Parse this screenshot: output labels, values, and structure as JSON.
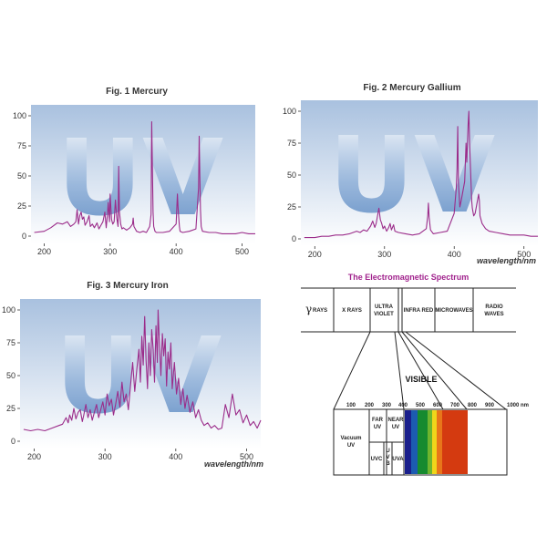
{
  "palette": {
    "spectrum_line": "#9b2c8a",
    "plot_top": "#a9c1df",
    "plot_bottom": "#ffffff",
    "uv_watermark": "#5f8fc8",
    "em_title": "#a0218c"
  },
  "watermark_text": "UV",
  "chart_data": [
    {
      "type": "line",
      "title": "Fig. 1 Mercury",
      "xlabel": "",
      "ylabel": "",
      "xlim": [
        180,
        520
      ],
      "ylim": [
        0,
        100
      ],
      "x_ticks": [
        "200",
        "300",
        "400",
        "500"
      ],
      "y_ticks": [
        "0",
        "25",
        "50",
        "75",
        "100"
      ],
      "grid": false,
      "series": [
        {
          "x": [
            185,
            200,
            210,
            220,
            228,
            235,
            240,
            245,
            248,
            250,
            252,
            254,
            256,
            258,
            260,
            262,
            265,
            268,
            270,
            273,
            276,
            280,
            283,
            286,
            289,
            292,
            294,
            296,
            297,
            299,
            300,
            302,
            304,
            306,
            308,
            310,
            312,
            313,
            314,
            316,
            318,
            320,
            325,
            330,
            334,
            335,
            336,
            340,
            345,
            350,
            355,
            360,
            362,
            363,
            365,
            366,
            368,
            370,
            380,
            390,
            400,
            402,
            403,
            404,
            405,
            406,
            410,
            420,
            430,
            434,
            435,
            436,
            437,
            438,
            440,
            450,
            460,
            470,
            480,
            490,
            500,
            510,
            520
          ],
          "y": [
            3,
            4,
            7,
            11,
            10,
            12,
            8,
            10,
            12,
            22,
            10,
            17,
            20,
            14,
            16,
            9,
            12,
            17,
            8,
            10,
            7,
            11,
            6,
            9,
            12,
            20,
            7,
            18,
            28,
            12,
            35,
            14,
            10,
            12,
            30,
            15,
            8,
            58,
            20,
            10,
            6,
            7,
            5,
            7,
            10,
            15,
            8,
            4,
            3,
            4,
            3,
            8,
            18,
            95,
            20,
            8,
            4,
            3,
            3,
            4,
            10,
            35,
            24,
            15,
            8,
            4,
            3,
            4,
            6,
            40,
            83,
            50,
            22,
            8,
            4,
            3,
            3,
            2,
            2,
            2,
            3,
            2,
            2
          ]
        }
      ]
    },
    {
      "type": "line",
      "title": "Fig. 2 Mercury Gallium",
      "xlabel": "wavelength/nm",
      "ylabel": "",
      "xlim": [
        180,
        520
      ],
      "ylim": [
        0,
        100
      ],
      "x_ticks": [
        "200",
        "300",
        "400",
        "500"
      ],
      "y_ticks": [
        "0",
        "25",
        "50",
        "75",
        "100"
      ],
      "grid": false,
      "series": [
        {
          "x": [
            185,
            200,
            210,
            220,
            230,
            240,
            250,
            255,
            260,
            265,
            270,
            275,
            280,
            283,
            286,
            288,
            290,
            292,
            294,
            296,
            298,
            300,
            303,
            306,
            308,
            310,
            313,
            315,
            320,
            330,
            340,
            350,
            360,
            362,
            363,
            364,
            366,
            370,
            380,
            390,
            400,
            403,
            404,
            405,
            406,
            408,
            410,
            415,
            417,
            418,
            420,
            421,
            422,
            424,
            425,
            426,
            428,
            430,
            435,
            436,
            437,
            440,
            445,
            450,
            460,
            470,
            480,
            490,
            500,
            510,
            520
          ],
          "y": [
            1,
            1,
            2,
            2,
            3,
            3,
            4,
            5,
            6,
            5,
            7,
            6,
            10,
            14,
            9,
            12,
            18,
            24,
            15,
            12,
            8,
            10,
            6,
            9,
            12,
            7,
            11,
            6,
            5,
            4,
            3,
            4,
            8,
            18,
            28,
            17,
            7,
            4,
            5,
            6,
            20,
            40,
            55,
            88,
            45,
            25,
            30,
            45,
            75,
            60,
            90,
            100,
            75,
            45,
            30,
            24,
            18,
            20,
            35,
            30,
            18,
            12,
            8,
            6,
            5,
            4,
            3,
            3,
            3,
            2,
            2
          ]
        }
      ]
    },
    {
      "type": "line",
      "title": "Fig. 3 Mercury Iron",
      "xlabel": "wavelength/nm",
      "ylabel": "",
      "xlim": [
        180,
        520
      ],
      "ylim": [
        0,
        100
      ],
      "x_ticks": [
        "200",
        "300",
        "400",
        "500"
      ],
      "y_ticks": [
        "0",
        "25",
        "50",
        "75",
        "100"
      ],
      "grid": false,
      "series": [
        {
          "x": [
            185,
            195,
            205,
            215,
            225,
            235,
            240,
            245,
            248,
            250,
            253,
            256,
            259,
            262,
            265,
            268,
            270,
            273,
            276,
            279,
            282,
            285,
            288,
            291,
            294,
            297,
            300,
            303,
            306,
            309,
            312,
            315,
            318,
            321,
            324,
            327,
            330,
            333,
            336,
            339,
            342,
            345,
            348,
            350,
            352,
            354,
            356,
            358,
            360,
            362,
            364,
            366,
            368,
            370,
            372,
            374,
            375,
            377,
            379,
            381,
            383,
            385,
            387,
            389,
            391,
            393,
            395,
            398,
            401,
            404,
            407,
            410,
            413,
            416,
            420,
            424,
            428,
            432,
            436,
            440,
            445,
            450,
            455,
            460,
            465,
            470,
            475,
            480,
            485,
            490,
            495,
            500,
            505,
            510,
            515,
            520
          ],
          "y": [
            9,
            8,
            9,
            8,
            10,
            12,
            13,
            18,
            14,
            20,
            16,
            25,
            17,
            22,
            24,
            15,
            20,
            28,
            18,
            24,
            16,
            22,
            28,
            18,
            24,
            30,
            20,
            36,
            27,
            32,
            20,
            28,
            38,
            26,
            45,
            30,
            36,
            24,
            42,
            60,
            38,
            55,
            70,
            45,
            80,
            58,
            95,
            62,
            40,
            75,
            50,
            85,
            70,
            45,
            88,
            60,
            100,
            72,
            50,
            82,
            65,
            78,
            42,
            68,
            55,
            75,
            40,
            60,
            36,
            48,
            28,
            40,
            25,
            35,
            22,
            30,
            18,
            24,
            16,
            12,
            14,
            10,
            12,
            9,
            10,
            28,
            18,
            36,
            20,
            24,
            14,
            20,
            12,
            15,
            10,
            16
          ]
        }
      ]
    }
  ],
  "em_spectrum": {
    "title": "The Electromagnetic Spectrum",
    "gamma": "RAYS",
    "bands": [
      "X RAYS",
      "ULTRA",
      "VIOLET",
      "INFRA RED",
      "MICROWAVES",
      "RADIO",
      "WAVES"
    ],
    "visible_label": "VISIBLE",
    "scale": [
      "100",
      "200",
      "300",
      "400",
      "500",
      "600",
      "700",
      "800",
      "900",
      "1000 nm"
    ],
    "vacuum": [
      "Vacuum",
      "UV"
    ],
    "far": [
      "FAR",
      "UV"
    ],
    "near": [
      "NEAR",
      "UV"
    ],
    "uvc": "UVC",
    "uvb": [
      "U",
      "V",
      "B"
    ],
    "uva": "UVA",
    "visible_colors": [
      "#1a1f8c",
      "#1c5bb0",
      "#168a2f",
      "#6fb52e",
      "#f0d61a",
      "#e8761a",
      "#d43a10"
    ]
  }
}
